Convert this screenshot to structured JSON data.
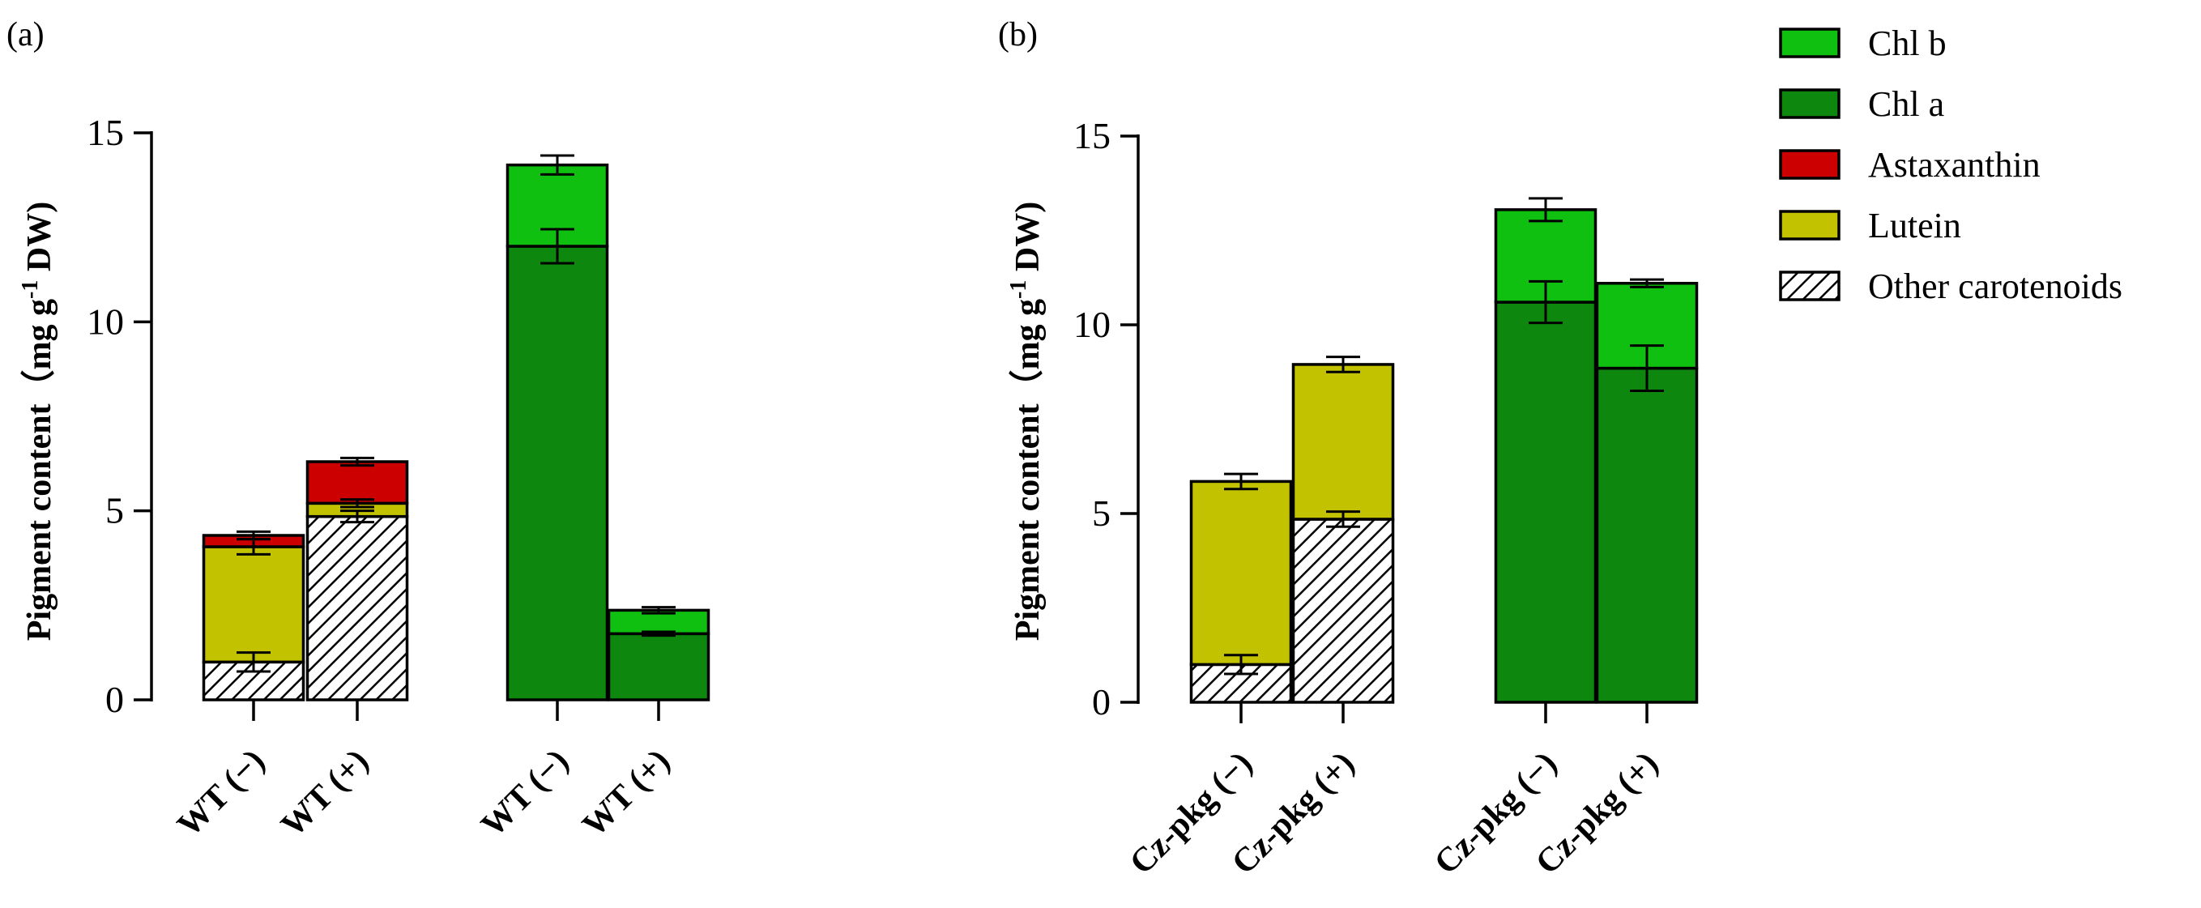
{
  "colors": {
    "Chl b": "#10c010",
    "Chl a": "#0d870d",
    "Astaxanthin": "#cc0000",
    "Lutein": "#c2c200",
    "Other carotenoids": "hatch"
  },
  "legend": [
    "Chl b",
    "Chl a",
    "Astaxanthin",
    "Lutein",
    "Other carotenoids"
  ],
  "chart_data": [
    {
      "type": "bar",
      "stacked": true,
      "panel": "(a)",
      "ylabel_main": "Pigment content（",
      "ylabel_unit": "mg g",
      "ylabel_sup": "-1",
      "ylabel_end": " DW)",
      "ylim": [
        0,
        15
      ],
      "yticks": [
        0,
        5,
        10,
        15
      ],
      "categories": [
        "WT (−)",
        "WT (+)",
        "WT (−)",
        "WT (+)"
      ],
      "groups": [
        [
          0,
          1
        ],
        [
          2,
          3
        ]
      ],
      "bars": [
        {
          "segments": [
            {
              "series": "Other carotenoids",
              "value": 1.0,
              "err": 0.25
            },
            {
              "series": "Lutein",
              "value": 3.05,
              "err": 0.2
            },
            {
              "series": "Astaxanthin",
              "value": 0.3,
              "err": 0.1
            }
          ]
        },
        {
          "segments": [
            {
              "series": "Other carotenoids",
              "value": 4.85,
              "err": 0.15
            },
            {
              "series": "Lutein",
              "value": 0.35,
              "err": 0.1
            },
            {
              "series": "Astaxanthin",
              "value": 1.1,
              "err": 0.1
            }
          ]
        },
        {
          "segments": [
            {
              "series": "Chl a",
              "value": 12.0,
              "err": 0.45
            },
            {
              "series": "Chl b",
              "value": 2.15,
              "err": 0.25
            }
          ]
        },
        {
          "segments": [
            {
              "series": "Chl a",
              "value": 1.75,
              "err": 0.05
            },
            {
              "series": "Chl b",
              "value": 0.62,
              "err": 0.08
            }
          ]
        }
      ]
    },
    {
      "type": "bar",
      "stacked": true,
      "panel": "(b)",
      "ylabel_main": "Pigment content（",
      "ylabel_unit": "mg g",
      "ylabel_sup": "-1",
      "ylabel_end": " DW)",
      "ylim": [
        0,
        15
      ],
      "yticks": [
        0,
        5,
        10,
        15
      ],
      "categories": [
        "Cz-pkg (−)",
        "Cz-pkg (+)",
        "Cz-pkg (−)",
        "Cz-pkg (+)"
      ],
      "groups": [
        [
          0,
          1
        ],
        [
          2,
          3
        ]
      ],
      "bars": [
        {
          "segments": [
            {
              "series": "Other carotenoids",
              "value": 1.0,
              "err": 0.25
            },
            {
              "series": "Lutein",
              "value": 4.85,
              "err": 0.2
            }
          ]
        },
        {
          "segments": [
            {
              "series": "Other carotenoids",
              "value": 4.85,
              "err": 0.2
            },
            {
              "series": "Lutein",
              "value": 4.1,
              "err": 0.2
            }
          ]
        },
        {
          "segments": [
            {
              "series": "Chl a",
              "value": 10.6,
              "err": 0.55
            },
            {
              "series": "Chl b",
              "value": 2.45,
              "err": 0.3
            }
          ]
        },
        {
          "segments": [
            {
              "series": "Chl a",
              "value": 8.85,
              "err": 0.6
            },
            {
              "series": "Chl b",
              "value": 2.25,
              "err": 0.1
            }
          ]
        }
      ]
    }
  ]
}
